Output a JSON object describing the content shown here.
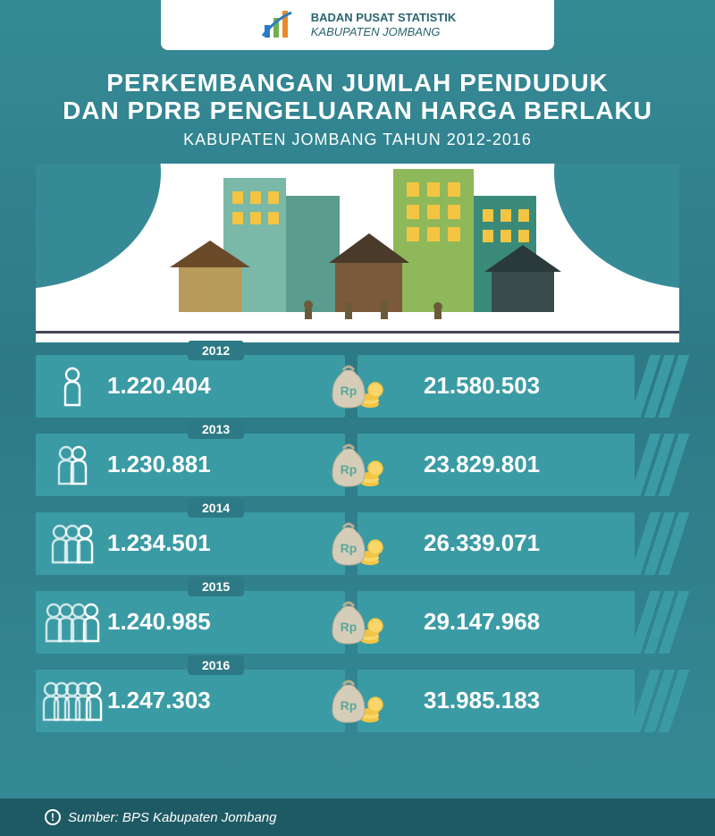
{
  "org": {
    "line1": "BADAN PUSAT STATISTIK",
    "line2": "KABUPATEN JOMBANG"
  },
  "title": {
    "main_line1": "PERKEMBANGAN JUMLAH PENDUDUK",
    "main_line2": "DAN PDRB PENGELUARAN HARGA BERLAKU",
    "sub": "KABUPATEN JOMBANG TAHUN 2012-2016"
  },
  "colors": {
    "bg_top": "#358a96",
    "bar": "#3b9ba5",
    "year_tab": "#2d7a86",
    "footer": "#1e5a63",
    "text_white": "#ffffff",
    "coin": "#f4c542",
    "bag": "#d6cdb8",
    "people": "#ffffff"
  },
  "currency_label": "Rp",
  "rows": [
    {
      "year": "2012",
      "population": "1.220.404",
      "gdp": "21.580.503",
      "people_count": 1
    },
    {
      "year": "2013",
      "population": "1.230.881",
      "gdp": "23.829.801",
      "people_count": 2
    },
    {
      "year": "2014",
      "population": "1.234.501",
      "gdp": "26.339.071",
      "people_count": 3
    },
    {
      "year": "2015",
      "population": "1.240.985",
      "gdp": "29.147.968",
      "people_count": 4
    },
    {
      "year": "2016",
      "population": "1.247.303",
      "gdp": "31.985.183",
      "people_count": 5
    }
  ],
  "footer": {
    "label": "Sumber: BPS Kabupaten Jombang"
  }
}
